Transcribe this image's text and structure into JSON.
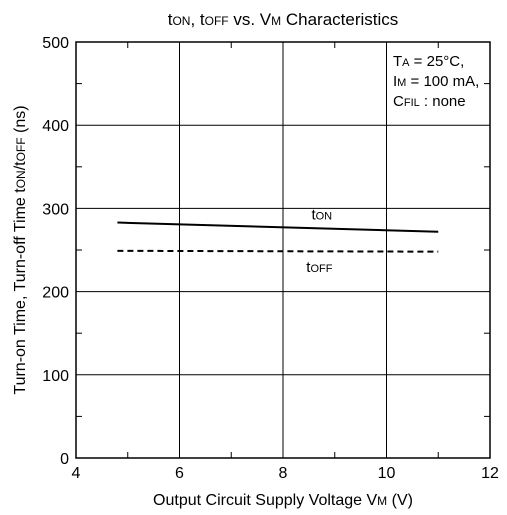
{
  "chart_data": {
    "type": "line",
    "title": {
      "parts": [
        {
          "text": "t",
          "sub": false
        },
        {
          "text": "ON",
          "sub": true
        },
        {
          "text": ", t",
          "sub": false
        },
        {
          "text": "OFF",
          "sub": true
        },
        {
          "text": " vs. V",
          "sub": false
        },
        {
          "text": "M",
          "sub": true
        },
        {
          "text": " Characteristics",
          "sub": false
        }
      ]
    },
    "xlabel": {
      "parts": [
        {
          "text": "Output Circuit Supply Voltage V",
          "sub": false
        },
        {
          "text": "M",
          "sub": true
        },
        {
          "text": " (V)",
          "sub": false
        }
      ]
    },
    "ylabel": {
      "parts": [
        {
          "text": "Turn-on Time, Turn-off Time t",
          "sub": false
        },
        {
          "text": "ON",
          "sub": true
        },
        {
          "text": "/t",
          "sub": false
        },
        {
          "text": "OFF",
          "sub": true
        },
        {
          "text": " (ns)",
          "sub": false
        }
      ]
    },
    "xlim": [
      4,
      12
    ],
    "ylim": [
      0,
      500
    ],
    "xticks": [
      4,
      6,
      8,
      10,
      12
    ],
    "yticks": [
      0,
      100,
      200,
      300,
      400,
      500
    ],
    "grid": true,
    "conditions": [
      {
        "parts": [
          {
            "text": "T",
            "sub": false
          },
          {
            "text": "A",
            "sub": true
          },
          {
            "text": " = 25°C,",
            "sub": false
          }
        ]
      },
      {
        "parts": [
          {
            "text": "I",
            "sub": false
          },
          {
            "text": "M",
            "sub": true
          },
          {
            "text": " = 100 mA,",
            "sub": false
          }
        ]
      },
      {
        "parts": [
          {
            "text": "C",
            "sub": false
          },
          {
            "text": "FIL",
            "sub": true
          },
          {
            "text": " :  none",
            "sub": false
          }
        ]
      }
    ],
    "series": [
      {
        "name": "tON",
        "label_parts": [
          {
            "text": "t",
            "sub": false
          },
          {
            "text": "ON",
            "sub": true
          }
        ],
        "style": "solid",
        "color": "#000000",
        "x": [
          4.8,
          11.0
        ],
        "y": [
          283,
          272
        ]
      },
      {
        "name": "tOFF",
        "label_parts": [
          {
            "text": "t",
            "sub": false
          },
          {
            "text": "OFF",
            "sub": true
          }
        ],
        "style": "dashed",
        "color": "#000000",
        "x": [
          4.8,
          11.0
        ],
        "y": [
          249,
          248
        ]
      }
    ]
  }
}
